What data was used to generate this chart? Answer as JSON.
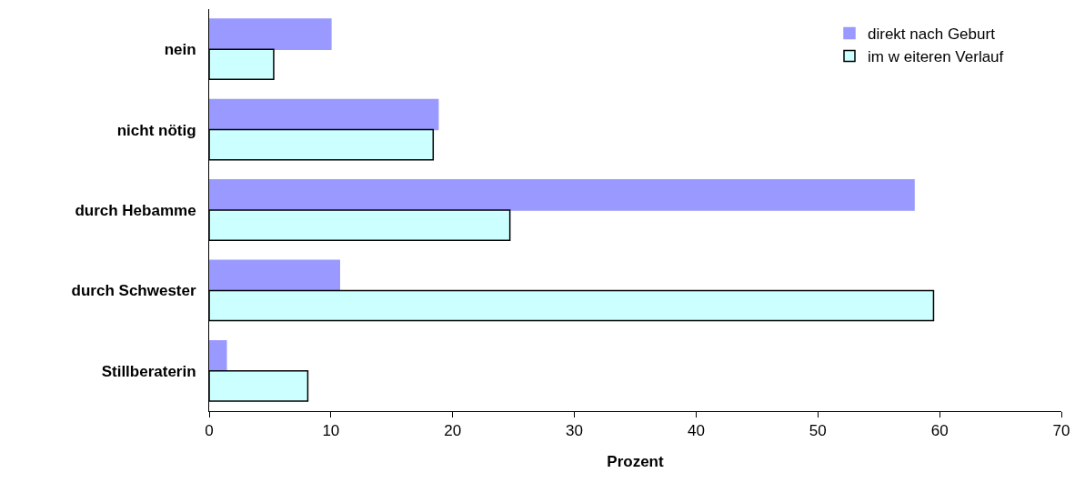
{
  "chart_data": {
    "type": "bar",
    "orientation": "horizontal",
    "xlabel": "Prozent",
    "categories": [
      "nein",
      "nicht nötig",
      "durch Hebamme",
      "durch Schwester",
      "Stillberaterin"
    ],
    "series": [
      {
        "name": "direkt nach Geburt",
        "color": "#9999ff",
        "values": [
          10,
          18.8,
          57.9,
          10.7,
          1.4
        ]
      },
      {
        "name": "im w eiteren Verlauf",
        "color": "#ccffff",
        "values": [
          5.3,
          18.4,
          24.7,
          59.5,
          8.1
        ]
      }
    ],
    "xlim": [
      0,
      70
    ],
    "xticks": [
      0,
      10,
      20,
      30,
      40,
      50,
      60,
      70
    ],
    "grid": false,
    "legend": "top right"
  }
}
